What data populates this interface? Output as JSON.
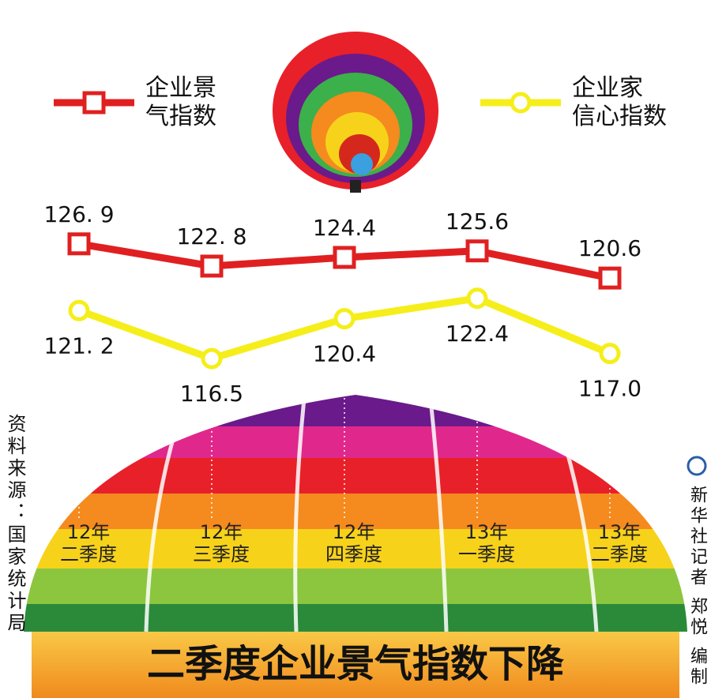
{
  "chart_data": {
    "type": "line",
    "title": "二季度企业景气指数下降",
    "source": "资料来源：国家统计局",
    "credit": "新华社记者 郑悦 编制",
    "categories": [
      "12年二季度",
      "12年三季度",
      "12年四季度",
      "13年一季度",
      "13年二季度"
    ],
    "series": [
      {
        "name": "企业景气指数",
        "color": "#e02020",
        "marker": "square",
        "values": [
          126.9,
          122.8,
          124.4,
          125.6,
          120.6
        ],
        "value_labels": [
          "126. 9",
          "122. 8",
          "124.4",
          "125.6",
          "120.6"
        ]
      },
      {
        "name": "企业家信心指数",
        "color": "#f5ee1a",
        "marker": "circle",
        "axis": "y2",
        "values": [
          121.2,
          116.5,
          120.4,
          122.4,
          117.0
        ],
        "value_labels": [
          "121. 2",
          "116.5",
          "120.4",
          "122.4",
          "117.0"
        ]
      }
    ],
    "ylim": [
      102,
      134
    ],
    "y2lim": [
      114.5,
      131.5
    ]
  }
}
